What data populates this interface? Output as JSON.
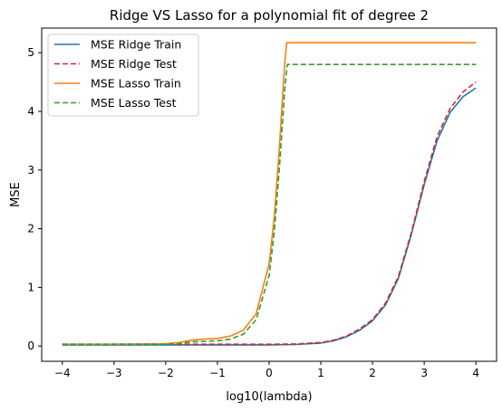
{
  "chart_data": {
    "type": "line",
    "title": "Ridge VS Lasso for a polynomial fit of degree 2",
    "xlabel": "log10(lambda)",
    "ylabel": "MSE",
    "xlim": [
      -4.4,
      4.4
    ],
    "ylim": [
      -0.26,
      5.42
    ],
    "xticks": [
      -4,
      -3,
      -2,
      -1,
      0,
      1,
      2,
      3,
      4
    ],
    "yticks": [
      0,
      1,
      2,
      3,
      4,
      5
    ],
    "grid": false,
    "legend_position": "top-left",
    "series": [
      {
        "name": "MSE Ridge Train",
        "color": "#1f77b4",
        "dash": "solid",
        "x": [
          -4,
          -3,
          -2,
          -1,
          0,
          0.5,
          1,
          1.25,
          1.5,
          1.75,
          2,
          2.25,
          2.5,
          2.75,
          3,
          3.25,
          3.5,
          3.75,
          4
        ],
        "y": [
          0.02,
          0.02,
          0.02,
          0.02,
          0.02,
          0.025,
          0.05,
          0.09,
          0.16,
          0.27,
          0.43,
          0.7,
          1.15,
          1.9,
          2.75,
          3.5,
          3.98,
          4.25,
          4.4
        ]
      },
      {
        "name": "MSE Ridge Test",
        "color": "#d62728",
        "dash": "dashed",
        "x": [
          -4,
          -3,
          -2,
          -1,
          0,
          0.5,
          1,
          1.25,
          1.5,
          1.75,
          2,
          2.25,
          2.5,
          2.75,
          3,
          3.25,
          3.5,
          3.75,
          4
        ],
        "y": [
          0.03,
          0.03,
          0.03,
          0.03,
          0.03,
          0.035,
          0.06,
          0.1,
          0.17,
          0.29,
          0.45,
          0.73,
          1.18,
          1.93,
          2.8,
          3.57,
          4.05,
          4.33,
          4.5
        ]
      },
      {
        "name": "MSE Lasso Train",
        "color": "#ff7f0e",
        "dash": "solid",
        "x": [
          -4,
          -3,
          -2,
          -1.75,
          -1.5,
          -1.25,
          -1,
          -0.75,
          -0.5,
          -0.25,
          0,
          0.1,
          0.2,
          0.3,
          0.34,
          1,
          2,
          3,
          4
        ],
        "y": [
          0.03,
          0.03,
          0.04,
          0.06,
          0.1,
          0.12,
          0.13,
          0.17,
          0.27,
          0.55,
          1.4,
          2.2,
          3.4,
          4.8,
          5.17,
          5.17,
          5.17,
          5.17,
          5.17
        ]
      },
      {
        "name": "MSE Lasso Test",
        "color": "#2ca02c",
        "dash": "dashed",
        "x": [
          -4,
          -3,
          -2,
          -1.75,
          -1.5,
          -1.25,
          -1,
          -0.75,
          -0.5,
          -0.25,
          0,
          0.1,
          0.2,
          0.3,
          0.35,
          1,
          2,
          3,
          4
        ],
        "y": [
          0.03,
          0.03,
          0.03,
          0.04,
          0.07,
          0.08,
          0.09,
          0.12,
          0.2,
          0.45,
          1.2,
          1.95,
          3.05,
          4.35,
          4.8,
          4.8,
          4.8,
          4.8,
          4.8
        ]
      }
    ]
  }
}
